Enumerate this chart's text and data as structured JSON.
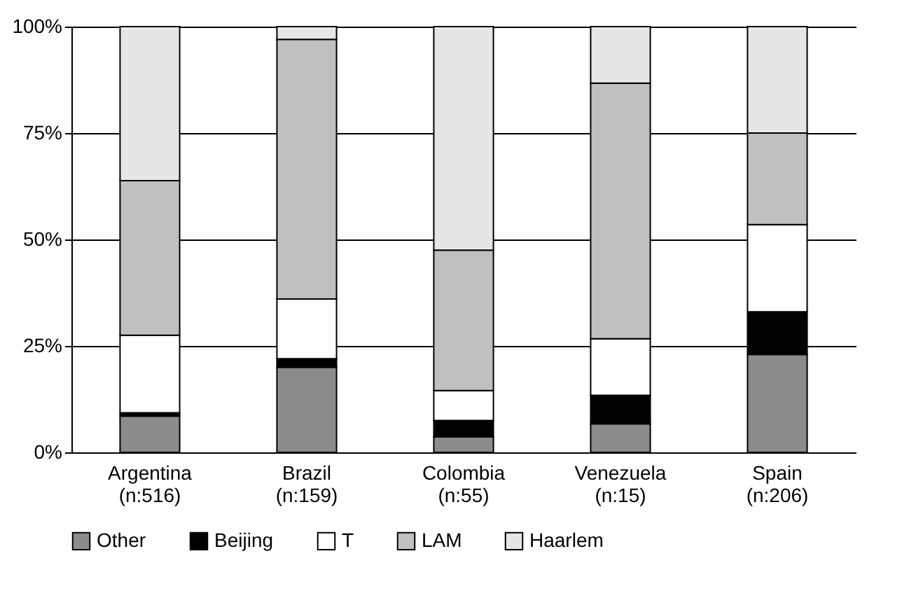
{
  "chart_data": {
    "type": "bar",
    "stacked": true,
    "categories": [
      "Argentina\n(n:516)",
      "Brazil\n(n:159)",
      "Colombia\n(n:55)",
      "Venezuela\n(n:15)",
      "Spain\n(n:206)"
    ],
    "series": [
      {
        "name": "Other",
        "color": "#8c8c8c",
        "values": [
          8.5,
          20,
          3.6,
          6.7,
          23
        ]
      },
      {
        "name": "Beijing",
        "color": "#000000",
        "values": [
          0.8,
          2,
          3.9,
          6.7,
          10
        ]
      },
      {
        "name": "T",
        "color": "#ffffff",
        "values": [
          18.2,
          14,
          7,
          13.3,
          20.5
        ]
      },
      {
        "name": "LAM",
        "color": "#c0c0c0",
        "values": [
          36.3,
          61,
          33,
          60,
          21.5
        ]
      },
      {
        "name": "Haarlem",
        "color": "#e6e6e6",
        "values": [
          36.2,
          3,
          52.5,
          13.3,
          25
        ]
      }
    ],
    "ylim": [
      0,
      100
    ],
    "yticks": [
      {
        "value": 0,
        "label": "0%"
      },
      {
        "value": 25,
        "label": "25%"
      },
      {
        "value": 50,
        "label": "50%"
      },
      {
        "value": 75,
        "label": "75%"
      },
      {
        "value": 100,
        "label": "100%"
      }
    ],
    "grid": "y",
    "legend": "bottom"
  }
}
